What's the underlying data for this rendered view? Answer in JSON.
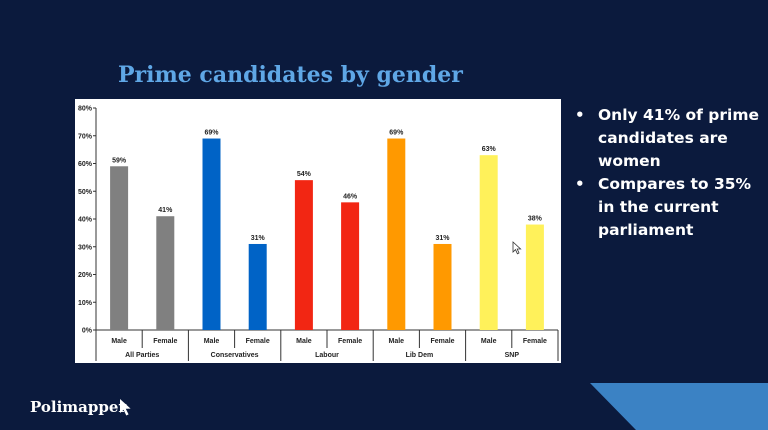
{
  "title": "Prime candidates by gender",
  "bullets": [
    "Only 41% of prime candidates are women",
    "Compares to 35% in the current parliament"
  ],
  "logo": {
    "text": "Polimapper",
    "icon": "cursor-arrow-icon"
  },
  "colors": {
    "background": "#0b1a3d",
    "title": "#5fa7e6",
    "accent_shape": "#3b82c4",
    "All Parties": "#808080",
    "Conservatives": "#0063c6",
    "Labour": "#f22613",
    "Lib Dem": "#ff9900",
    "SNP": "#fff15a"
  },
  "chart_data": {
    "type": "bar",
    "title": "",
    "xlabel": "",
    "ylabel": "",
    "ylim": [
      0,
      80
    ],
    "yticks": [
      "0%",
      "10%",
      "20%",
      "30%",
      "40%",
      "50%",
      "60%",
      "70%",
      "80%"
    ],
    "grid": false,
    "legend": "none",
    "groups": [
      "All Parties",
      "Conservatives",
      "Labour",
      "Lib Dem",
      "SNP"
    ],
    "subcategories": [
      "Male",
      "Female"
    ],
    "values": [
      [
        59,
        41
      ],
      [
        69,
        31
      ],
      [
        54,
        46
      ],
      [
        69,
        31
      ],
      [
        63,
        38
      ]
    ],
    "data_labels": [
      [
        "59%",
        "41%"
      ],
      [
        "69%",
        "31%"
      ],
      [
        "54%",
        "46%"
      ],
      [
        "69%",
        "31%"
      ],
      [
        "63%",
        "38%"
      ]
    ]
  }
}
